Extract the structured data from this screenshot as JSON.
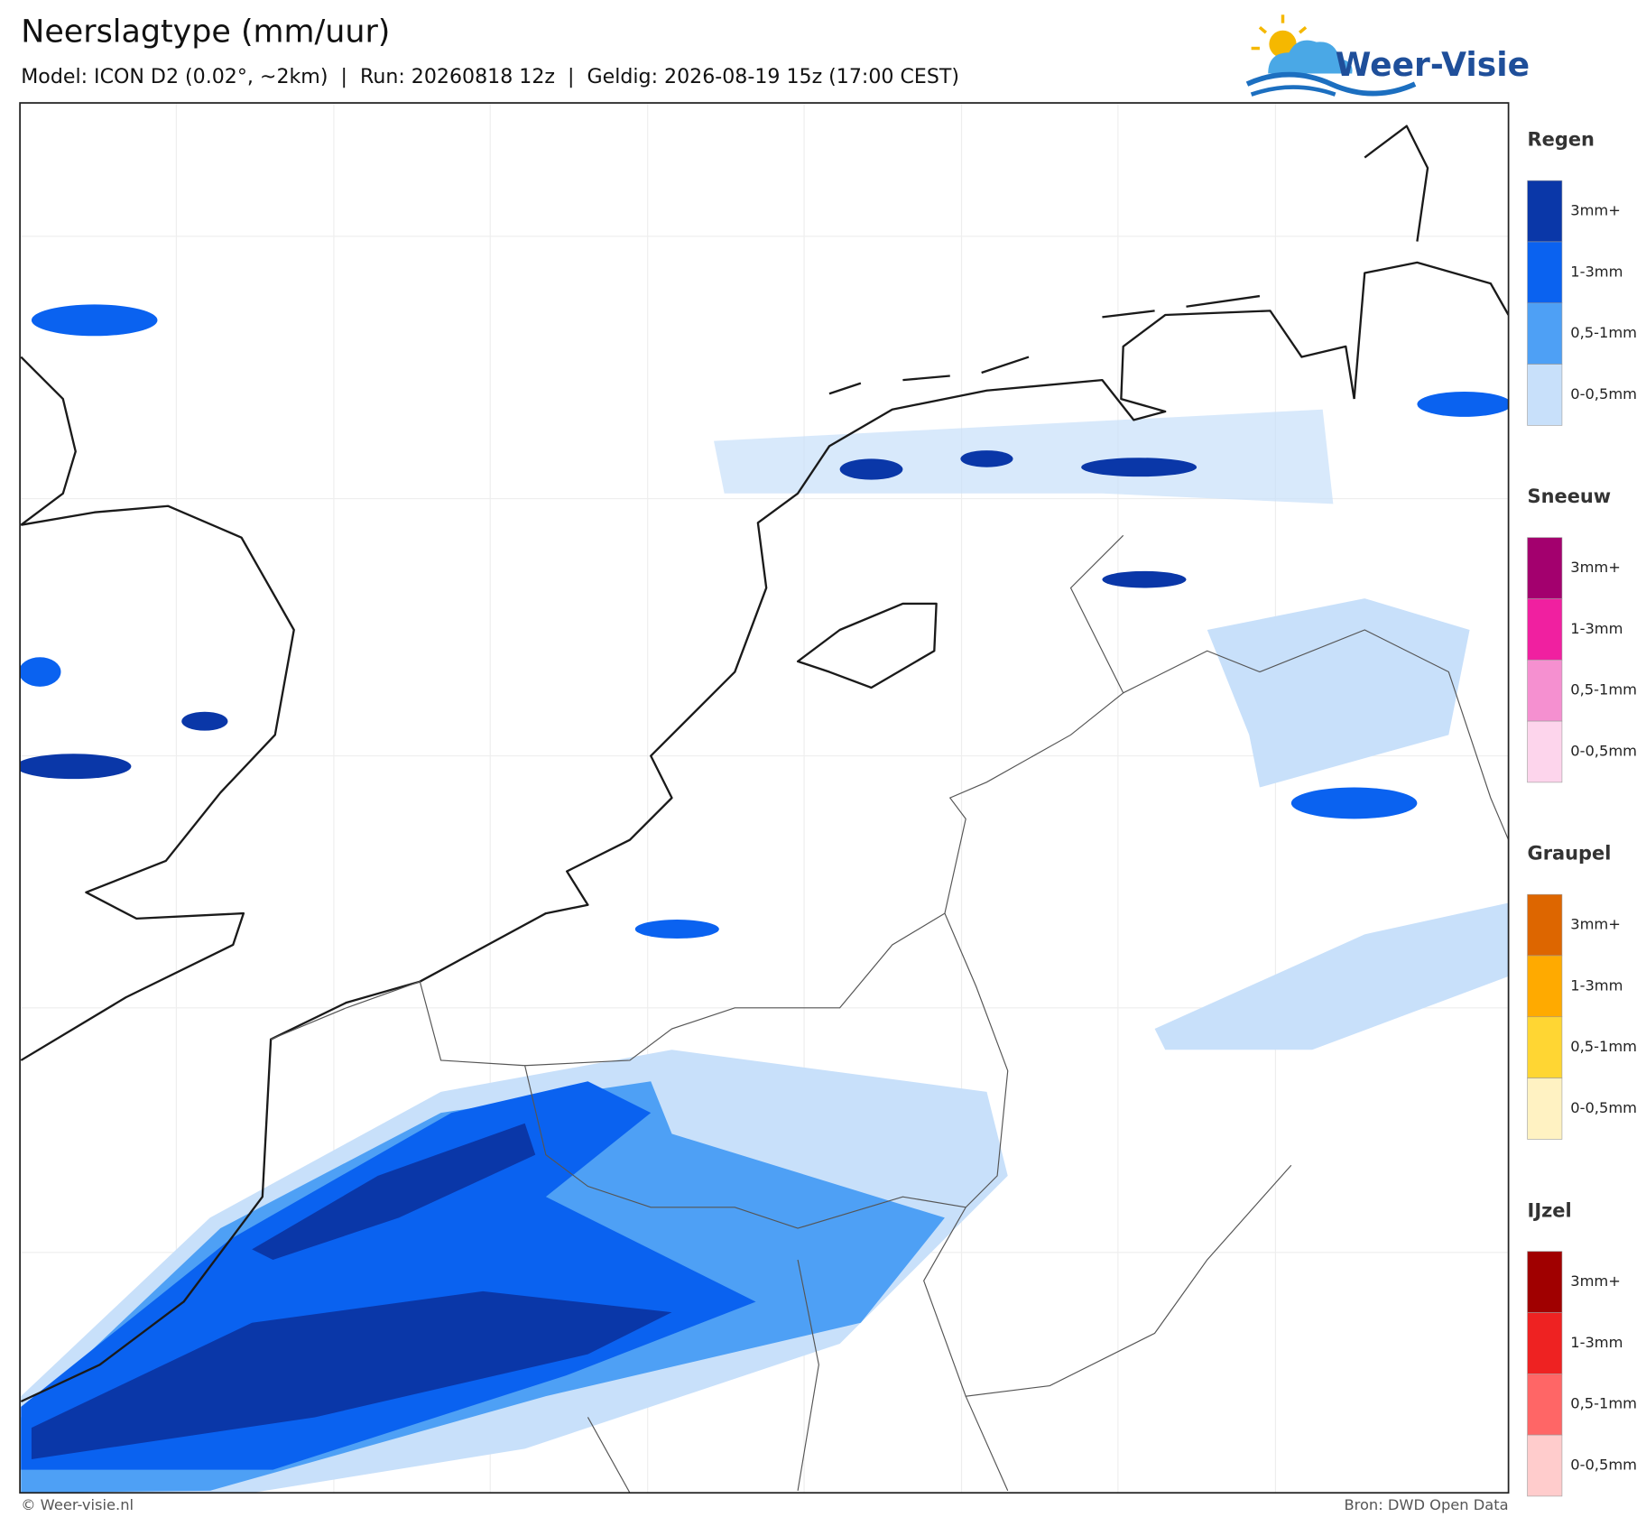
{
  "header": {
    "title": "Neerslagtype (mm/uur)",
    "subtitle": "Model: ICON D2 (0.02°, ~2km)  |  Run: 20260818 12z  |  Geldig: 2026-08-19 15z (17:00 CEST)"
  },
  "logo": {
    "text": "Weer-Visie"
  },
  "legend": [
    {
      "title": "Regen",
      "items": [
        {
          "label": "3mm+",
          "color": "#0a37a8"
        },
        {
          "label": "1-3mm",
          "color": "#0a62f0"
        },
        {
          "label": "0,5-1mm",
          "color": "#4ea0f5"
        },
        {
          "label": "0-0,5mm",
          "color": "#c8e0fa"
        }
      ]
    },
    {
      "title": "Sneeuw",
      "items": [
        {
          "label": "3mm+",
          "color": "#a3006e"
        },
        {
          "label": "1-3mm",
          "color": "#f020a0"
        },
        {
          "label": "0,5-1mm",
          "color": "#f590d0"
        },
        {
          "label": "0-0,5mm",
          "color": "#fdd5ec"
        }
      ]
    },
    {
      "title": "Graupel",
      "items": [
        {
          "label": "3mm+",
          "color": "#dd6600"
        },
        {
          "label": "1-3mm",
          "color": "#ffaa00"
        },
        {
          "label": "0,5-1mm",
          "color": "#ffd633"
        },
        {
          "label": "0-0,5mm",
          "color": "#fff2c2"
        }
      ]
    },
    {
      "title": "IJzel",
      "items": [
        {
          "label": "3mm+",
          "color": "#a00000"
        },
        {
          "label": "1-3mm",
          "color": "#ee2222"
        },
        {
          "label": "0,5-1mm",
          "color": "#ff6666"
        },
        {
          "label": "0-0,5mm",
          "color": "#ffcccc"
        }
      ]
    }
  ],
  "footer": {
    "left": "© Weer-visie.nl",
    "right": "Bron: DWD Open Data"
  }
}
